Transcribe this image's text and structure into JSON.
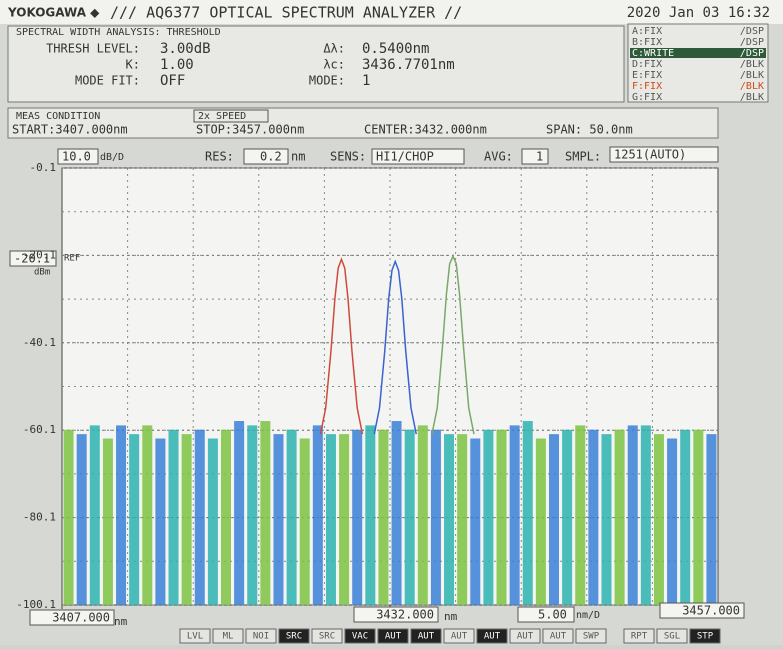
{
  "header": {
    "brand": "YOKOGAWA ◆",
    "model": "/// AQ6377 OPTICAL SPECTRUM ANALYZER //",
    "datetime": "2020 Jan 03 16:32"
  },
  "analysis": {
    "title": "SPECTRAL WIDTH ANALYSIS: THRESHOLD",
    "rows": [
      [
        "THRESH LEVEL:",
        "3.00dB",
        "Δλ:",
        "0.5400nm"
      ],
      [
        "K:",
        "1.00",
        "λc:",
        "3436.7701nm"
      ],
      [
        "MODE FIT:",
        "OFF",
        "MODE:",
        "1"
      ]
    ]
  },
  "traces": [
    [
      "A:FIX",
      "/DSP"
    ],
    [
      "B:FIX",
      "/DSP"
    ],
    [
      "C:WRITE",
      "/DSP"
    ],
    [
      "D:FIX",
      "/BLK"
    ],
    [
      "E:FIX",
      "/BLK"
    ],
    [
      "F:FIX",
      "/BLK"
    ],
    [
      "G:FIX",
      "/BLK"
    ]
  ],
  "meas": {
    "title": "MEAS CONDITION",
    "speed": "2x SPEED",
    "start": "START:3407.000nm",
    "stop": "STOP:3457.000nm",
    "center": "CENTER:3432.000nm",
    "span": "SPAN:   50.0nm"
  },
  "settings": {
    "scale": "10.0",
    "scale_unit": "dB/D",
    "res_label": "RES:",
    "res": "0.2",
    "res_unit": "nm",
    "sens_label": "SENS:",
    "sens": "HI1/CHOP",
    "avg_label": "AVG:",
    "avg": "1",
    "smpl_label": "SMPL:",
    "smpl": "1251(AUTO)"
  },
  "ref": {
    "value": "-20.1",
    "label": "REF",
    "unit": "dBm"
  },
  "footer": {
    "center_unit": "nm",
    "per_div": "5.00",
    "per_div_unit": "nm/D",
    "start_unit": "nm",
    "buttons": [
      "LVL",
      "ML",
      "NOI",
      "SRC",
      "SRC",
      "VAC",
      "AUT",
      "AUT",
      "AUT",
      "AUT",
      "AUT",
      "AUT",
      "SWP",
      "RPT",
      "SGL",
      "STP"
    ]
  },
  "chart_data": {
    "type": "line",
    "xlim": [
      3407,
      3457
    ],
    "ylim": [
      -100.1,
      -0.1
    ],
    "yticks": [
      -0.1,
      -20.1,
      -40.1,
      -60.1,
      -80.1,
      -100.1
    ],
    "xticks": [
      {
        "value": 3407,
        "label": "3407.000"
      },
      {
        "value": 3432,
        "label": "3432.000"
      },
      {
        "value": 3457,
        "label": "3457.000"
      }
    ],
    "grid": true,
    "series": [
      {
        "style": "bar",
        "color": "#7cc242",
        "x": [
          3407.5,
          3410.5,
          3413.5,
          3416.5,
          3419.5,
          3422.5,
          3425.5,
          3428.5,
          3431.5,
          3434.5,
          3437.5,
          3440.5,
          3443.5,
          3446.5,
          3449.5,
          3452.5,
          3455.5
        ],
        "values": [
          -60,
          -62,
          -59,
          -61,
          -60,
          -58,
          -62,
          -61,
          -60,
          -59,
          -61,
          -60,
          -62,
          -59,
          -60,
          -61,
          -60
        ]
      },
      {
        "style": "bar",
        "color": "#3a7fd8",
        "x": [
          3408.5,
          3411.5,
          3414.5,
          3417.5,
          3420.5,
          3423.5,
          3426.5,
          3429.5,
          3432.5,
          3435.5,
          3438.5,
          3441.5,
          3444.5,
          3447.5,
          3450.5,
          3453.5,
          3456.5
        ],
        "values": [
          -61,
          -59,
          -62,
          -60,
          -58,
          -61,
          -59,
          -60,
          -58,
          -60,
          -62,
          -59,
          -61,
          -60,
          -59,
          -62,
          -61
        ]
      },
      {
        "style": "bar",
        "color": "#2bb3b0",
        "x": [
          3409.5,
          3412.5,
          3415.5,
          3418.5,
          3421.5,
          3424.5,
          3427.5,
          3430.5,
          3433.5,
          3436.5,
          3439.5,
          3442.5,
          3445.5,
          3448.5,
          3451.5,
          3454.5
        ],
        "values": [
          -59,
          -61,
          -60,
          -62,
          -59,
          -60,
          -61,
          -59,
          -60,
          -61,
          -60,
          -58,
          -60,
          -61,
          -59,
          -60
        ]
      },
      {
        "style": "line",
        "color": "#d04a3a",
        "x": [
          3426.7,
          3427.1,
          3427.5,
          3427.8,
          3428.05,
          3428.3,
          3428.55,
          3428.8,
          3429.1,
          3429.5,
          3429.9
        ],
        "values": [
          -61,
          -55,
          -42,
          -30,
          -23,
          -21,
          -23,
          -30,
          -42,
          -55,
          -61
        ]
      },
      {
        "style": "line",
        "color": "#3a62d0",
        "x": [
          3430.8,
          3431.2,
          3431.6,
          3431.9,
          3432.15,
          3432.4,
          3432.65,
          3432.9,
          3433.2,
          3433.6,
          3434
        ],
        "values": [
          -61,
          -55,
          -42,
          -30,
          -23.5,
          -21.5,
          -23.5,
          -30,
          -42,
          -55,
          -61
        ]
      },
      {
        "style": "line",
        "color": "#7aa86a",
        "x": [
          3435.2,
          3435.6,
          3436,
          3436.3,
          3436.55,
          3436.8,
          3437.05,
          3437.3,
          3437.6,
          3438,
          3438.4
        ],
        "values": [
          -61,
          -55,
          -41,
          -29,
          -22,
          -20.3,
          -22,
          -29,
          -41,
          -55,
          -61
        ]
      }
    ]
  }
}
